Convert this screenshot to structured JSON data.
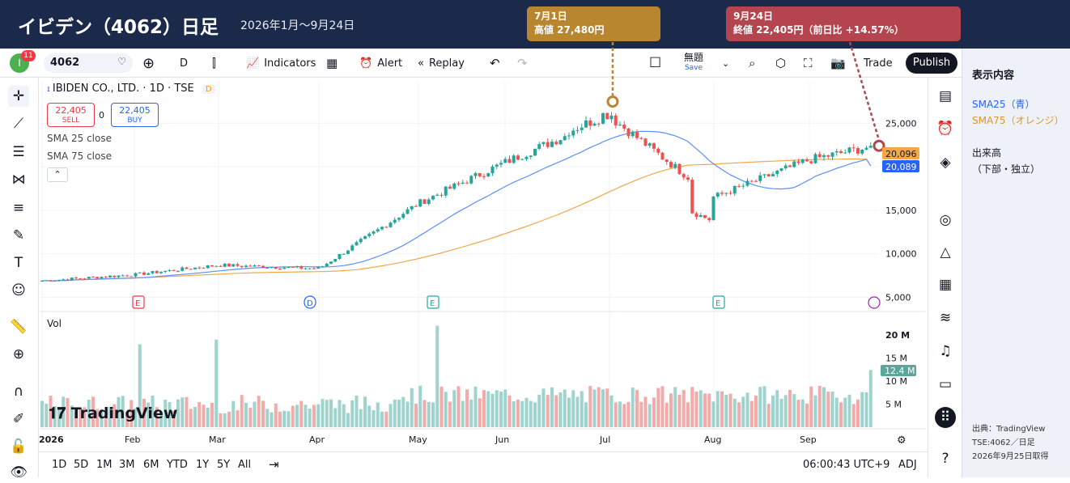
{
  "header": {
    "title": "イビデン（4062）日足",
    "subtitle": "2026年1月〜9月24日"
  },
  "callouts": [
    {
      "line1": "7月1日",
      "line2": "高値 27,480円"
    },
    {
      "line1": "9月24日",
      "line2": "終値 22,405円（前日比 +14.57%）"
    }
  ],
  "toolbar": {
    "avatar": "I",
    "badge": "11",
    "symbol": "4062",
    "interval": "D",
    "indicators": "Indicators",
    "alert": "Alert",
    "replay": "Replay",
    "layout_name": "無題",
    "save": "Save",
    "trade": "Trade",
    "publish": "Publish"
  },
  "legend": {
    "title": "IBIDEN CO., LTD. · 1D · TSE",
    "d_badge": "D"
  },
  "order": {
    "sell_price": "22,405",
    "sell_label": "SELL",
    "spread": "0",
    "buy_price": "22,405",
    "buy_label": "BUY"
  },
  "indicators": {
    "sma25": "SMA 25 close",
    "sma75": "SMA 75 close"
  },
  "volume": {
    "label": "Vol"
  },
  "events": [
    "E",
    "D",
    "E",
    "E"
  ],
  "price_axis": {
    "ticks": [
      "25,000",
      "20,000",
      "15,000",
      "10,000",
      "5,000"
    ],
    "sma75_label": "20,096",
    "sma25_label": "20,089"
  },
  "volume_axis": {
    "ticks": [
      "20 M",
      "15 M",
      "10 M",
      "5 M"
    ],
    "current": "12.4 M"
  },
  "time_axis": [
    "2026",
    "Feb",
    "Mar",
    "Apr",
    "May",
    "Jun",
    "Jul",
    "Aug",
    "Sep"
  ],
  "bottom": {
    "ranges": [
      "1D",
      "5D",
      "1M",
      "3M",
      "6M",
      "YTD",
      "1Y",
      "5Y",
      "All"
    ],
    "clock": "06:00:43 UTC+9",
    "adj": "ADJ"
  },
  "right_panel": {
    "heading": "表示内容",
    "sma25": "SMA25（青）",
    "sma75": "SMA75（オレンジ）",
    "volume": "出来高",
    "volume_note": "（下部・独立）",
    "source1": "出典：TradingView",
    "source2": "TSE:4062／日足",
    "source3": "2026年9月25日取得"
  },
  "watermark": "TradingView",
  "colors": {
    "up": "#26a69a",
    "down": "#ef5350",
    "vol_up": "#9fd3cd",
    "vol_down": "#f2aba9",
    "sma25": "#5b8ff9",
    "sma75": "#f0a848",
    "header": "#1b2a4a",
    "callout_high": "#b8862e",
    "callout_close": "#b4454f"
  },
  "chart_data": {
    "type": "candlestick",
    "symbol": "TSE:4062",
    "interval": "1D",
    "ylim": [
      5000,
      27480
    ],
    "x_months": [
      "2026",
      "Feb",
      "Mar",
      "Apr",
      "May",
      "Jun",
      "Jul",
      "Aug",
      "Sep"
    ],
    "close_by_month_start": [
      {
        "month": "Jan",
        "close": 6900
      },
      {
        "month": "Feb",
        "close": 7600
      },
      {
        "month": "Mar",
        "close": 8700
      },
      {
        "month": "Apr",
        "close": 8300
      },
      {
        "month": "May",
        "close": 15800
      },
      {
        "month": "Jun",
        "close": 20500
      },
      {
        "month": "Jul",
        "close": 25800
      },
      {
        "month": "Aug",
        "close": 16500
      },
      {
        "month": "Sep",
        "close": 20800
      }
    ],
    "annotations": [
      {
        "date": "2026-07-01",
        "label": "高値 27,480円",
        "value": 27480
      },
      {
        "date": "2026-09-24",
        "label": "終値 22,405円（前日比 +14.57%）",
        "value": 22405
      }
    ],
    "last": {
      "close": 22405,
      "sma25": 20089,
      "sma75": 20096,
      "volume_m": 12.4
    },
    "series": [
      {
        "name": "SMA 25 close",
        "color": "#5b8ff9"
      },
      {
        "name": "SMA 75 close",
        "color": "#f0a848"
      },
      {
        "name": "Vol",
        "max_volume_m": 20
      }
    ]
  }
}
